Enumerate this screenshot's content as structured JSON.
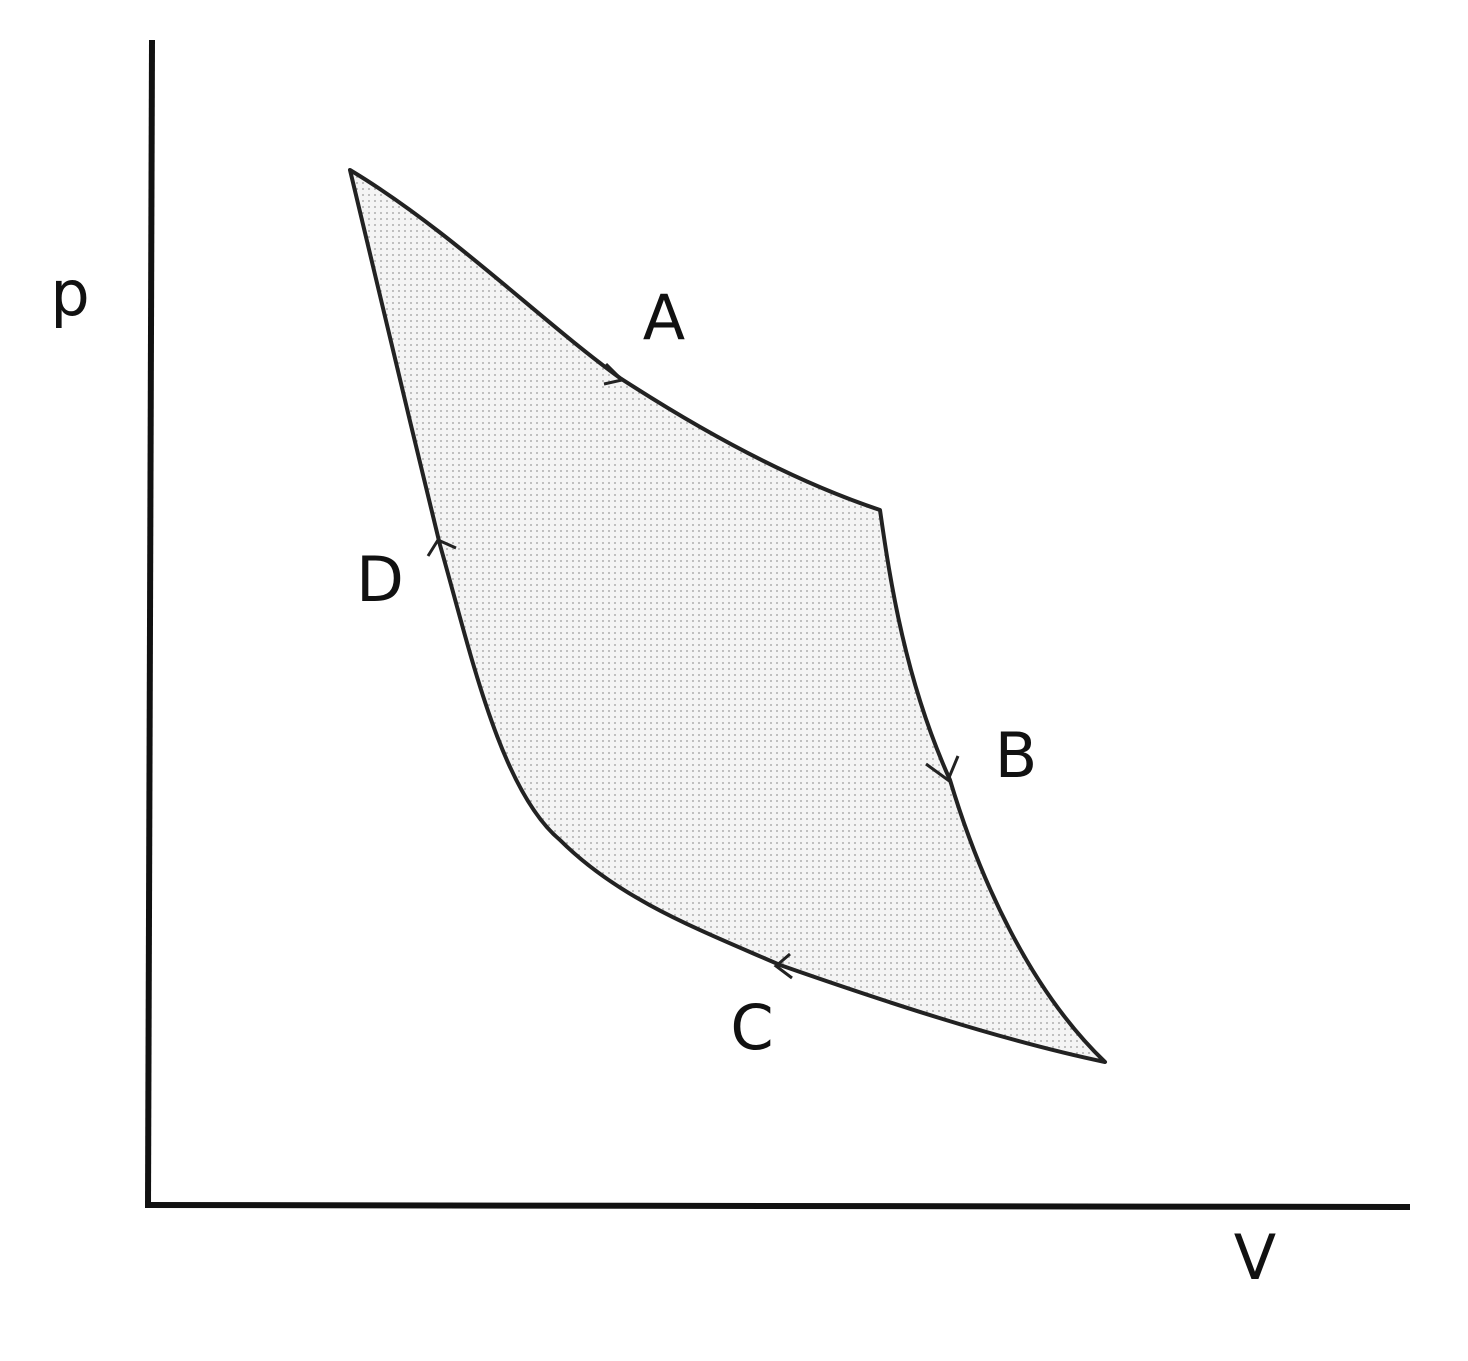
{
  "axes": {
    "y_label": "p",
    "x_label": "V"
  },
  "processes": [
    {
      "label": "A"
    },
    {
      "label": "B"
    },
    {
      "label": "C"
    },
    {
      "label": "D"
    }
  ]
}
